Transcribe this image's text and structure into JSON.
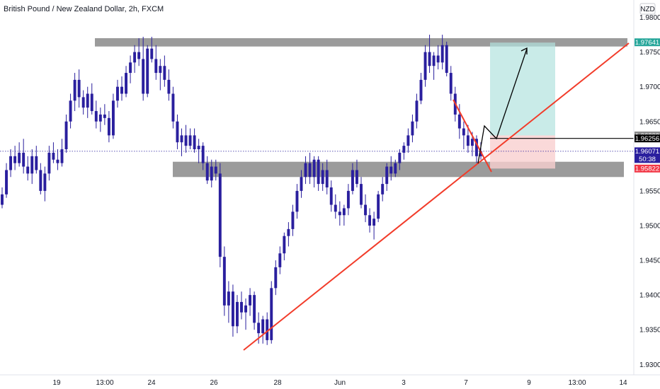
{
  "header": {
    "title": "British Pound / New Zealand Dollar, 2h, FXCM"
  },
  "currency_badge": "NZD",
  "countdown": "50:38",
  "colors": {
    "candle": "#2a1f9e",
    "trendline": "#f23c2a",
    "zone": "#7a7a7a",
    "target_box": "#b2e3de",
    "stop_box": "#f9cfcf",
    "tag_target": "#26a69a",
    "tag_stop": "#f23645",
    "tag_current": "#2a1f9e",
    "tag_level": "#000000",
    "tag_grey": "#8a8a8a",
    "gridline": "#ffffff",
    "axis_text": "#131722"
  },
  "chart_data": {
    "type": "candlestick",
    "title": "British Pound / New Zealand Dollar, 2h, FXCM",
    "y_axis": {
      "ticks": [
        "1.98000",
        "1.97500",
        "1.97000",
        "1.96500",
        "1.96000",
        "1.95500",
        "1.95000",
        "1.94500",
        "1.94000",
        "1.93500",
        "1.93000"
      ],
      "ylim": [
        1.9285,
        1.9825
      ],
      "position": "right"
    },
    "x_axis": {
      "ticks": [
        "19",
        "13:00",
        "24",
        "26",
        "28",
        "Jun",
        "3",
        "7",
        "9",
        "13:00",
        "14"
      ]
    },
    "price_tags": [
      {
        "label": "1.97641",
        "value": 1.97641,
        "style": "target"
      },
      {
        "label": "1.96299",
        "value": 1.96299,
        "style": "grey"
      },
      {
        "label": "1.96256",
        "value": 1.96256,
        "style": "level"
      },
      {
        "label": "1.96071",
        "value": 1.96071,
        "style": "current"
      },
      {
        "label": "1.95822",
        "value": 1.95822,
        "style": "stop"
      }
    ],
    "current_price": 1.96071,
    "zones": [
      {
        "name": "resistance",
        "low": 1.9758,
        "high": 1.977
      },
      {
        "name": "support",
        "low": 1.957,
        "high": 1.9592
      }
    ],
    "series": [
      {
        "values": [
          [
            1.953,
            1.9555,
            1.9525,
            1.9545
          ],
          [
            1.9545,
            1.959,
            1.954,
            1.958
          ],
          [
            1.958,
            1.961,
            1.957,
            1.96
          ],
          [
            1.96,
            1.9615,
            1.958,
            1.959
          ],
          [
            1.959,
            1.962,
            1.9585,
            1.9605
          ],
          [
            1.9605,
            1.9625,
            1.9575,
            1.9585
          ],
          [
            1.9585,
            1.96,
            1.9565,
            1.9575
          ],
          [
            1.9575,
            1.961,
            1.956,
            1.96
          ],
          [
            1.96,
            1.9615,
            1.9575,
            1.958
          ],
          [
            1.958,
            1.959,
            1.9545,
            1.955
          ],
          [
            1.955,
            1.9585,
            1.9535,
            1.9575
          ],
          [
            1.9575,
            1.9615,
            1.9565,
            1.9605
          ],
          [
            1.9605,
            1.962,
            1.959,
            1.9595
          ],
          [
            1.9595,
            1.961,
            1.958,
            1.959
          ],
          [
            1.959,
            1.9625,
            1.9585,
            1.961
          ],
          [
            1.961,
            1.966,
            1.9605,
            1.965
          ],
          [
            1.965,
            1.969,
            1.964,
            1.968
          ],
          [
            1.968,
            1.972,
            1.9665,
            1.971
          ],
          [
            1.971,
            1.9725,
            1.967,
            1.9685
          ],
          [
            1.9685,
            1.9695,
            1.966,
            1.967
          ],
          [
            1.967,
            1.97,
            1.9655,
            1.969
          ],
          [
            1.969,
            1.9705,
            1.966,
            1.9665
          ],
          [
            1.9665,
            1.968,
            1.964,
            1.965
          ],
          [
            1.965,
            1.967,
            1.9635,
            1.966
          ],
          [
            1.966,
            1.9675,
            1.9645,
            1.9655
          ],
          [
            1.9655,
            1.9665,
            1.962,
            1.963
          ],
          [
            1.963,
            1.969,
            1.9625,
            1.968
          ],
          [
            1.968,
            1.971,
            1.967,
            1.97
          ],
          [
            1.97,
            1.9715,
            1.968,
            1.969
          ],
          [
            1.969,
            1.973,
            1.9685,
            1.972
          ],
          [
            1.972,
            1.9745,
            1.9705,
            1.9735
          ],
          [
            1.9735,
            1.976,
            1.972,
            1.975
          ],
          [
            1.975,
            1.977,
            1.973,
            1.974
          ],
          [
            1.974,
            1.9772,
            1.968,
            1.969
          ],
          [
            1.969,
            1.976,
            1.9685,
            1.9755
          ],
          [
            1.9755,
            1.9772,
            1.9735,
            1.974
          ],
          [
            1.974,
            1.976,
            1.971,
            1.972
          ],
          [
            1.972,
            1.974,
            1.9695,
            1.973
          ],
          [
            1.973,
            1.9745,
            1.97,
            1.971
          ],
          [
            1.971,
            1.9725,
            1.968,
            1.969
          ],
          [
            1.969,
            1.97,
            1.964,
            1.965
          ],
          [
            1.965,
            1.966,
            1.961,
            1.962
          ],
          [
            1.962,
            1.964,
            1.96,
            1.963
          ],
          [
            1.963,
            1.9645,
            1.9605,
            1.9615
          ],
          [
            1.9615,
            1.964,
            1.961,
            1.963
          ],
          [
            1.963,
            1.964,
            1.9605,
            1.961
          ],
          [
            1.961,
            1.9625,
            1.959,
            1.9615
          ],
          [
            1.9615,
            1.962,
            1.958,
            1.959
          ],
          [
            1.959,
            1.96,
            1.956,
            1.9565
          ],
          [
            1.9565,
            1.9595,
            1.9555,
            1.9585
          ],
          [
            1.9585,
            1.9595,
            1.9565,
            1.9575
          ],
          [
            1.9575,
            1.959,
            1.944,
            1.9455
          ],
          [
            1.9455,
            1.947,
            1.937,
            1.9385
          ],
          [
            1.9385,
            1.942,
            1.936,
            1.9405
          ],
          [
            1.9405,
            1.9415,
            1.934,
            1.9355
          ],
          [
            1.9355,
            1.94,
            1.9345,
            1.939
          ],
          [
            1.939,
            1.9405,
            1.9365,
            1.9375
          ],
          [
            1.9375,
            1.9395,
            1.935,
            1.9385
          ],
          [
            1.9385,
            1.941,
            1.937,
            1.94
          ],
          [
            1.94,
            1.9405,
            1.935,
            1.936
          ],
          [
            1.936,
            1.9375,
            1.933,
            1.9345
          ],
          [
            1.9345,
            1.937,
            1.933,
            1.9365
          ],
          [
            1.9365,
            1.9375,
            1.9328,
            1.9335
          ],
          [
            1.9335,
            1.942,
            1.933,
            1.941
          ],
          [
            1.941,
            1.945,
            1.94,
            1.944
          ],
          [
            1.944,
            1.947,
            1.943,
            1.946
          ],
          [
            1.946,
            1.949,
            1.945,
            1.9485
          ],
          [
            1.9485,
            1.9505,
            1.947,
            1.9495
          ],
          [
            1.9495,
            1.953,
            1.9485,
            1.952
          ],
          [
            1.952,
            1.956,
            1.951,
            1.955
          ],
          [
            1.955,
            1.958,
            1.954,
            1.957
          ],
          [
            1.957,
            1.96,
            1.956,
            1.959
          ],
          [
            1.959,
            1.9605,
            1.956,
            1.957
          ],
          [
            1.957,
            1.96,
            1.9555,
            1.9595
          ],
          [
            1.9595,
            1.96,
            1.955,
            1.956
          ],
          [
            1.956,
            1.959,
            1.955,
            1.958
          ],
          [
            1.958,
            1.9595,
            1.9545,
            1.9555
          ],
          [
            1.9555,
            1.9565,
            1.952,
            1.953
          ],
          [
            1.953,
            1.9545,
            1.951,
            1.952
          ],
          [
            1.952,
            1.9535,
            1.95,
            1.9515
          ],
          [
            1.9515,
            1.953,
            1.95,
            1.9525
          ],
          [
            1.9525,
            1.956,
            1.9515,
            1.955
          ],
          [
            1.955,
            1.959,
            1.9545,
            1.958
          ],
          [
            1.958,
            1.9595,
            1.9555,
            1.956
          ],
          [
            1.956,
            1.957,
            1.9525,
            1.953
          ],
          [
            1.953,
            1.9545,
            1.9505,
            1.9515
          ],
          [
            1.9515,
            1.9525,
            1.949,
            1.95
          ],
          [
            1.95,
            1.952,
            1.948,
            1.951
          ],
          [
            1.951,
            1.955,
            1.9505,
            1.9545
          ],
          [
            1.9545,
            1.957,
            1.9535,
            1.956
          ],
          [
            1.956,
            1.959,
            1.955,
            1.9585
          ],
          [
            1.9585,
            1.96,
            1.9565,
            1.9575
          ],
          [
            1.9575,
            1.9595,
            1.957,
            1.959
          ],
          [
            1.959,
            1.961,
            1.958,
            1.9605
          ],
          [
            1.9605,
            1.962,
            1.9595,
            1.9615
          ],
          [
            1.9615,
            1.964,
            1.9605,
            1.963
          ],
          [
            1.963,
            1.966,
            1.962,
            1.965
          ],
          [
            1.965,
            1.969,
            1.964,
            1.968
          ],
          [
            1.968,
            1.972,
            1.9675,
            1.971
          ],
          [
            1.971,
            1.976,
            1.97,
            1.975
          ],
          [
            1.975,
            1.9775,
            1.972,
            1.973
          ],
          [
            1.973,
            1.975,
            1.971,
            1.9745
          ],
          [
            1.9745,
            1.976,
            1.9725,
            1.9735
          ],
          [
            1.9735,
            1.9775,
            1.9725,
            1.976
          ],
          [
            1.976,
            1.9765,
            1.9715,
            1.972
          ],
          [
            1.972,
            1.973,
            1.968,
            1.969
          ],
          [
            1.969,
            1.97,
            1.965,
            1.966
          ],
          [
            1.966,
            1.9675,
            1.9625,
            1.964
          ],
          [
            1.964,
            1.965,
            1.961,
            1.963
          ],
          [
            1.963,
            1.9645,
            1.9605,
            1.9615
          ],
          [
            1.9615,
            1.9635,
            1.96,
            1.9625
          ],
          [
            1.9625,
            1.963,
            1.959,
            1.96
          ],
          [
            1.96,
            1.962,
            1.9595,
            1.9607
          ]
        ]
      }
    ],
    "annotations": [
      "horizontal resistance zone",
      "horizontal support zone",
      "rising trendline",
      "projected path arrow",
      "long position target and stop boxes",
      "dotted current-price line"
    ]
  }
}
